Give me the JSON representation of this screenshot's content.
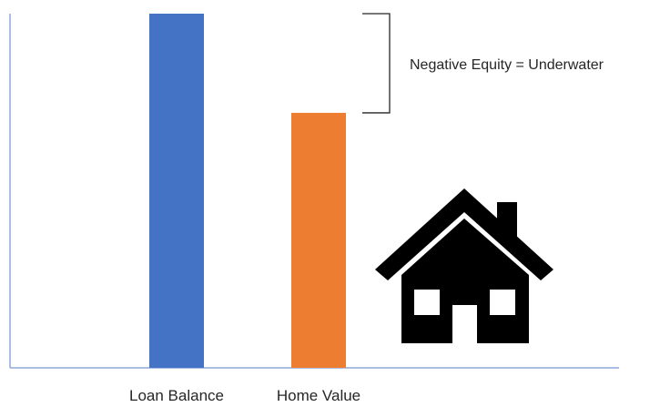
{
  "chart_data": {
    "type": "bar",
    "categories": [
      "Loan Balance",
      "Home Value"
    ],
    "values": [
      100,
      72
    ],
    "ylim": [
      0,
      100
    ],
    "colors": [
      "#4472C4",
      "#ED7D31"
    ],
    "grid": false,
    "legend": "none",
    "annotations": [
      {
        "text": "Negative Equity = Underwater",
        "type": "bracket",
        "from_value": 72,
        "to_value": 100
      }
    ]
  },
  "icon": {
    "name": "house-icon",
    "color": "#000000"
  }
}
